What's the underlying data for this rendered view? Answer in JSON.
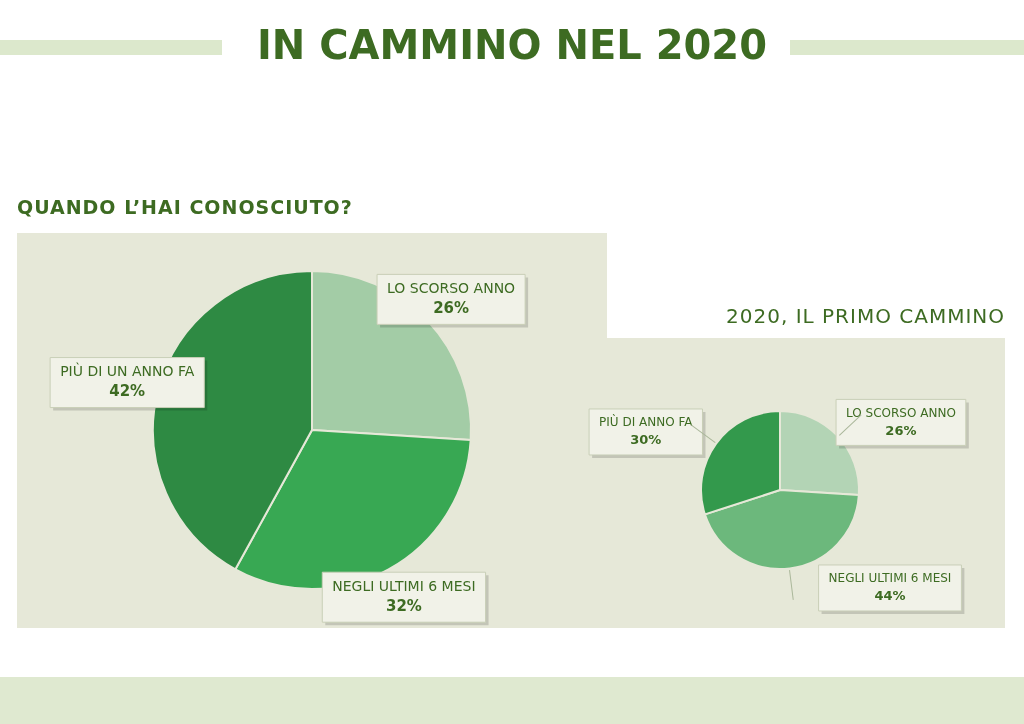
{
  "chart_data": [
    {
      "type": "pie",
      "title": "IN CAMMINO NEL 2020",
      "subtitle": "QUANDO L’HAI CONOSCIUTO?",
      "categories": [
        "LO SCORSO ANNO",
        "NEGLI ULTIMI 6 MESI",
        "PIÙ DI UN ANNO FA"
      ],
      "values": [
        26,
        32,
        42
      ],
      "colors": [
        "#a3cca6",
        "#38a853",
        "#2e8a43"
      ],
      "value_labels": [
        "26%",
        "32%",
        "42%"
      ],
      "legend": false
    },
    {
      "type": "pie",
      "title": "2020, IL PRIMO CAMMINO",
      "categories": [
        "LO SCORSO ANNO",
        "NEGLI ULTIMI 6 MESI",
        "PIÙ DI ANNO FA"
      ],
      "values": [
        26,
        44,
        30
      ],
      "colors": [
        "#b3d4b5",
        "#6cb87c",
        "#33994c"
      ],
      "value_labels": [
        "26%",
        "44%",
        "30%"
      ],
      "legend": false
    }
  ]
}
